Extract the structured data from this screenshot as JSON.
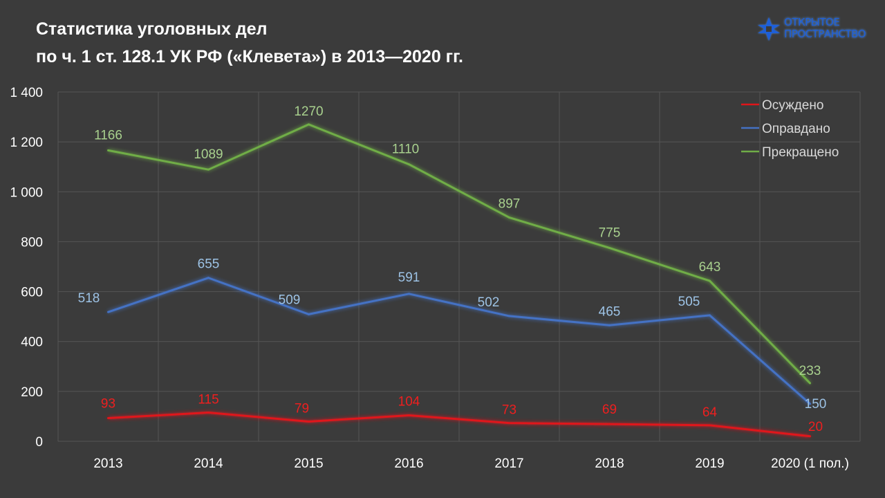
{
  "title": {
    "line1": "Статистика уголовных дел",
    "line2": "по ч. 1 ст. 128.1 УК РФ («Клевета») в 2013—2020 гг."
  },
  "logo": {
    "line1": "ОТКРЫТОЕ",
    "line2": "ПРОСТРАНСТВО",
    "icon": "cross-star-icon",
    "color": "#1e5fd8"
  },
  "chart_data": {
    "type": "line",
    "categories": [
      "2013",
      "2014",
      "2015",
      "2016",
      "2017",
      "2018",
      "2019",
      "2020 (1 пол.)"
    ],
    "ylim": [
      0,
      1400
    ],
    "yticks": [
      0,
      200,
      400,
      600,
      800,
      1000,
      1200,
      1400
    ],
    "ytick_labels": [
      "0",
      "200",
      "400",
      "600",
      "800",
      "1 000",
      "1 200",
      "1 400"
    ],
    "grid": true,
    "legend_position": "top-right",
    "series": [
      {
        "name": "Осуждено",
        "color": "#e0151a",
        "label_color": "#ee1f1f",
        "values": [
          93,
          115,
          79,
          104,
          73,
          69,
          64,
          20
        ]
      },
      {
        "name": "Оправдано",
        "color": "#4472c4",
        "label_color": "#9dc3e6",
        "values": [
          518,
          655,
          509,
          591,
          502,
          465,
          505,
          150
        ]
      },
      {
        "name": "Прекращено",
        "color": "#70ad47",
        "label_color": "#a9d18e",
        "values": [
          1166,
          1089,
          1270,
          1110,
          897,
          775,
          643,
          233
        ]
      }
    ]
  }
}
